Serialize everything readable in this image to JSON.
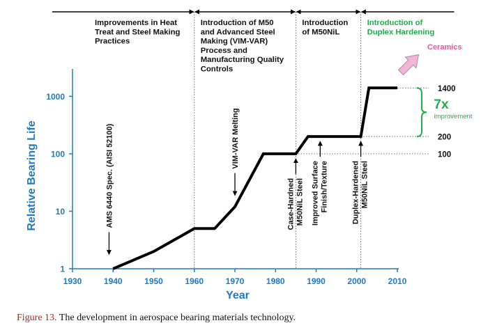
{
  "caption": {
    "label": "Figure 13.",
    "text": "The development in aerospace bearing materials technology."
  },
  "colors": {
    "axis": "#1f78c8",
    "line": "#000000",
    "green": "#1fae4b",
    "pink": "#e8559a",
    "arrow_fill": "#f4b6d8",
    "arrow_stroke": "#9b8fb0",
    "caption_label": "#b22222"
  },
  "chart_data": {
    "type": "line",
    "xlabel": "Year",
    "ylabel": "Relative Bearing Life",
    "xlim": [
      1930,
      2010
    ],
    "ylim": [
      1,
      3000
    ],
    "yscale": "log",
    "x_ticks": [
      1930,
      1940,
      1950,
      1960,
      1970,
      1980,
      1990,
      2000,
      2010
    ],
    "y_ticks": [
      {
        "value": 1,
        "label": "1"
      },
      {
        "value": 10,
        "label": "10"
      },
      {
        "value": 100,
        "label": "100"
      },
      {
        "value": 1000,
        "label": "1000"
      }
    ],
    "series": [
      {
        "x": [
          1940,
          1950,
          1960,
          1965,
          1970,
          1977,
          1985,
          1988,
          2001,
          2003,
          2010
        ],
        "y": [
          1,
          2,
          5,
          5,
          12,
          100,
          100,
          200,
          200,
          1400,
          1400
        ]
      }
    ],
    "eras": [
      {
        "lines": [
          "Improvements in Heat",
          "Treat and Steel Making",
          "Practices"
        ],
        "x_start": 1925,
        "x_end": 1960,
        "arrow": "right"
      },
      {
        "lines": [
          "Introduction of M50",
          "and Advanced Steel",
          "Making (VIM-VAR)",
          "Process and",
          "Manufacturing Quality",
          "Controls"
        ],
        "x_start": 1960,
        "x_end": 1985,
        "arrow": "both"
      },
      {
        "lines": [
          "Introduction",
          "of M50NiL"
        ],
        "x_start": 1985,
        "x_end": 2001,
        "arrow": "both"
      },
      {
        "lines": [
          "Introduction of",
          "Duplex Hardening"
        ],
        "x_start": 2001,
        "x_end": 2024,
        "arrow": "left",
        "color": "green"
      }
    ],
    "milestones": [
      {
        "lines": [
          "AMS 6440 Spec. (AISI 52100)"
        ],
        "x": 1939,
        "y": 1.5
      },
      {
        "lines": [
          "VIM-VAR Melting"
        ],
        "x": 1970,
        "y": 16
      },
      {
        "lines": [
          "Case-Hardned",
          "M50NiL Steel"
        ],
        "x": 1985,
        "y": 100
      },
      {
        "lines": [
          "Improved Surface",
          "Finish/Texture"
        ],
        "x": 1991,
        "y": 200
      },
      {
        "lines": [
          "Duplex-Hardened",
          "M50NiL Steel"
        ],
        "x": 2001,
        "y": 200
      }
    ],
    "reference_lines": [
      {
        "value": 1400,
        "label": "1400"
      },
      {
        "value": 200,
        "label": "200"
      },
      {
        "value": 100,
        "label": "100"
      }
    ],
    "annotations": {
      "improvement_factor": "7x",
      "improvement_label": "improvement",
      "ceramics": "Ceramics"
    }
  }
}
